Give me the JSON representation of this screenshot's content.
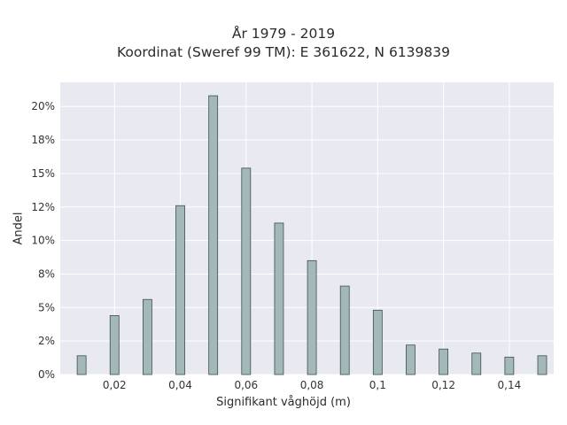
{
  "chart_data": {
    "type": "bar",
    "title_lines": [
      "År 1979 - 2019",
      "Koordinat (Sweref 99 TM): E 361622, N 6139839"
    ],
    "xlabel": "Signifikant våghöjd (m)",
    "ylabel": "Andel",
    "x": [
      0.01,
      0.02,
      0.03,
      0.04,
      0.05,
      0.06,
      0.07,
      0.08,
      0.09,
      0.1,
      0.11,
      0.12,
      0.13,
      0.14,
      0.15
    ],
    "values": [
      1.4,
      4.4,
      5.6,
      12.6,
      20.8,
      15.4,
      11.3,
      8.5,
      6.6,
      4.8,
      2.2,
      1.9,
      1.6,
      1.3,
      1.4
    ],
    "xlim": [
      0.0035,
      0.1535
    ],
    "ylim": [
      0,
      21.8
    ],
    "xticks": [
      0.02,
      0.04,
      0.06,
      0.08,
      0.1,
      0.12,
      0.14
    ],
    "xtick_labels": [
      "0,02",
      "0,04",
      "0,06",
      "0,08",
      "0,1",
      "0,12",
      "0,14"
    ],
    "yticks": [
      0,
      2.5,
      5,
      7.5,
      10,
      12.5,
      15,
      17.5,
      20
    ],
    "ytick_labels": [
      "0%",
      "2%",
      "5%",
      "8%",
      "10%",
      "12%",
      "15%",
      "18%",
      "20%"
    ],
    "grid": true,
    "bar_color": "#a3b8b8",
    "bar_edge_color": "#3f4f4f",
    "plot_bg": "#e9e9f1"
  }
}
